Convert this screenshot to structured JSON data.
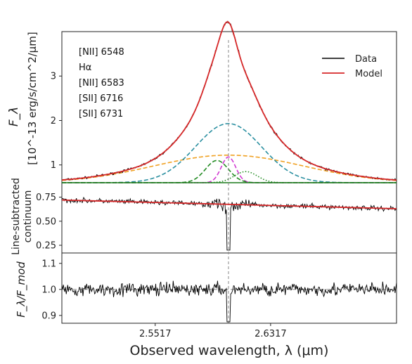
{
  "chart_data": [
    {
      "panel": "spectrum",
      "type": "line",
      "ylabel_top": "F_λ",
      "ylabel_bottom": "[10^-13 erg/s/cm^2/μm]",
      "ylim": [
        0.6,
        4.0
      ],
      "yticks": [
        1,
        2,
        3
      ],
      "xlim": [
        2.487,
        2.719
      ],
      "line_center": 2.6025,
      "line_ids": [
        "[NII] 6548",
        "Hα",
        "[NII] 6583",
        "[SII] 6716",
        "[SII] 6731"
      ],
      "legend": [
        {
          "label": "Data",
          "color": "#000000"
        },
        {
          "label": "Model",
          "color": "#d62728"
        }
      ],
      "components": [
        {
          "name": "broad Hα",
          "color": "#f0a020",
          "style": "dashed",
          "amplitude": 0.62,
          "sigma": 0.052
        },
        {
          "name": "intermediate Hα",
          "color": "#2a8fa0",
          "style": "dashed",
          "amplitude": 1.33,
          "sigma": 0.023
        },
        {
          "name": "narrow Hα",
          "color": "#d13ad1",
          "style": "dashed",
          "amplitude": 0.58,
          "sigma": 0.005
        },
        {
          "name": "[NII] 6548",
          "color": "#228b22",
          "style": "dashed",
          "amplitude": 0.5,
          "sigma": 0.008
        },
        {
          "name": "[NII] 6583",
          "color": "#228b22",
          "style": "dotted",
          "amplitude": 0.25,
          "sigma": 0.008
        }
      ],
      "continuum_level": 0.6
    },
    {
      "panel": "continuum",
      "type": "line",
      "ylabel_top": "Line-subtracted",
      "ylabel_bottom": "continuum",
      "ylim": [
        0.17,
        0.9
      ],
      "yticks": [
        0.25,
        0.5,
        0.75
      ],
      "model_start": 0.72,
      "model_end": 0.63
    },
    {
      "panel": "ratio",
      "type": "line",
      "ylabel": "F_λ/F_mod",
      "ylim": [
        0.87,
        1.14
      ],
      "yticks": [
        0.9,
        1.0,
        1.1
      ],
      "reference_level": 1.0
    }
  ],
  "shared_x": {
    "xlabel": "Observed wavelength, λ (μm)",
    "xticks": [
      2.5517,
      2.6317
    ],
    "xlim": [
      2.487,
      2.719
    ]
  },
  "colors": {
    "data": "#000000",
    "model": "#d62728",
    "reference": "#888888"
  }
}
